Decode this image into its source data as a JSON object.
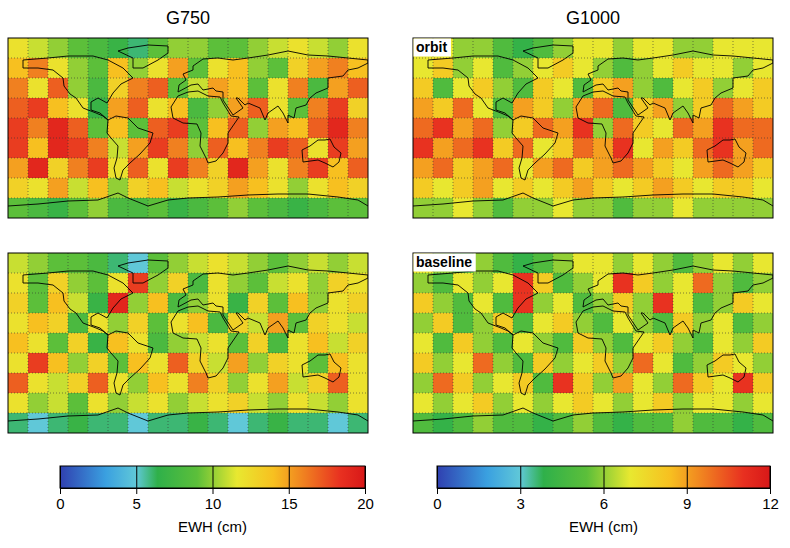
{
  "chart_data": [
    {
      "type": "heatmap",
      "title": "G750",
      "xlim": [
        -180,
        180
      ],
      "ylim": [
        -90,
        90
      ],
      "x": [
        -170,
        -150,
        -130,
        -110,
        -90,
        -70,
        -50,
        -30,
        -10,
        10,
        30,
        50,
        70,
        90,
        110,
        130,
        150,
        170
      ],
      "y": [
        80,
        60,
        40,
        20,
        0,
        -20,
        -40,
        -60,
        -80
      ],
      "grid": true,
      "tick_labels": false,
      "color_range": [
        0,
        20
      ],
      "color_ticks": [
        0,
        5,
        10,
        15,
        20
      ],
      "color_label": "EWH (cm)",
      "panels": [
        {
          "cells": [
            [
              12,
              11,
              10,
              9,
              8,
              7,
              6,
              9,
              10,
              10,
              9,
              9,
              10,
              11,
              12,
              11,
              10,
              12
            ],
            [
              14,
              16,
              12,
              10,
              9,
              14,
              10,
              12,
              15,
              9,
              12,
              14,
              10,
              9,
              13,
              15,
              16,
              14
            ],
            [
              16,
              12,
              17,
              10,
              8,
              13,
              16,
              17,
              9,
              11,
              15,
              14,
              9,
              12,
              16,
              8,
              15,
              17
            ],
            [
              17,
              18,
              14,
              12,
              7,
              15,
              17,
              12,
              14,
              8,
              10,
              15,
              17,
              12,
              9,
              16,
              18,
              13
            ],
            [
              18,
              16,
              19,
              17,
              9,
              14,
              9,
              17,
              18,
              9,
              14,
              17,
              10,
              15,
              14,
              17,
              19,
              16
            ],
            [
              18,
              14,
              19,
              18,
              16,
              11,
              15,
              18,
              16,
              10,
              17,
              14,
              16,
              18,
              17,
              12,
              18,
              15
            ],
            [
              15,
              19,
              13,
              16,
              18,
              12,
              17,
              12,
              18,
              16,
              13,
              19,
              15,
              12,
              16,
              18,
              14,
              17
            ],
            [
              13,
              12,
              15,
              11,
              14,
              10,
              13,
              14,
              11,
              12,
              13,
              15,
              14,
              12,
              10,
              12,
              14,
              13
            ],
            [
              9,
              8,
              7,
              9,
              10,
              8,
              8,
              9,
              7,
              8,
              9,
              10,
              9,
              8,
              7,
              8,
              9,
              9
            ]
          ]
        },
        {
          "cells": [
            [
              11,
              10,
              9,
              9,
              8,
              6,
              5,
              9,
              10,
              11,
              12,
              11,
              10,
              9,
              10,
              11,
              10,
              11
            ],
            [
              12,
              9,
              13,
              10,
              9,
              12,
              18,
              10,
              13,
              8,
              12,
              10,
              9,
              11,
              12,
              10,
              13,
              12
            ],
            [
              13,
              9,
              14,
              11,
              7,
              19,
              10,
              14,
              8,
              10,
              12,
              7,
              13,
              9,
              14,
              10,
              12,
              13
            ],
            [
              12,
              14,
              13,
              8,
              12,
              10,
              13,
              9,
              12,
              14,
              8,
              13,
              11,
              15,
              9,
              13,
              12,
              11
            ],
            [
              14,
              12,
              9,
              13,
              7,
              14,
              12,
              8,
              10,
              11,
              12,
              9,
              13,
              8,
              12,
              14,
              11,
              13
            ],
            [
              12,
              18,
              14,
              10,
              13,
              9,
              14,
              12,
              17,
              13,
              11,
              15,
              10,
              13,
              12,
              9,
              14,
              12
            ],
            [
              17,
              12,
              11,
              13,
              17,
              12,
              10,
              14,
              12,
              16,
              13,
              10,
              12,
              15,
              11,
              13,
              17,
              12
            ],
            [
              12,
              10,
              11,
              9,
              12,
              10,
              11,
              12,
              10,
              11,
              12,
              13,
              11,
              10,
              12,
              11,
              10,
              12
            ],
            [
              6,
              5,
              6,
              7,
              6,
              6,
              5,
              6,
              6,
              7,
              6,
              5,
              6,
              7,
              6,
              6,
              5,
              6
            ]
          ]
        }
      ]
    },
    {
      "type": "heatmap",
      "title": "G1000",
      "xlim": [
        -180,
        180
      ],
      "ylim": [
        -90,
        90
      ],
      "x": [
        -170,
        -150,
        -130,
        -110,
        -90,
        -70,
        -50,
        -30,
        -10,
        10,
        30,
        50,
        70,
        90,
        110,
        130,
        150,
        170
      ],
      "y": [
        80,
        60,
        40,
        20,
        0,
        -20,
        -40,
        -60,
        -80
      ],
      "grid": true,
      "tick_labels": false,
      "color_range": [
        0,
        12
      ],
      "color_ticks": [
        0,
        3,
        6,
        9,
        12
      ],
      "color_label": "EWH (cm)",
      "panels": [
        {
          "annotation": "orbit",
          "cells": [
            [
              7,
              7,
              6,
              6,
              5,
              4,
              5,
              6,
              7,
              7,
              6,
              7,
              7,
              6,
              6,
              7,
              7,
              7
            ],
            [
              7,
              8,
              6,
              7,
              5,
              6,
              7,
              8,
              7,
              6,
              5,
              6,
              7,
              8,
              7,
              7,
              6,
              7
            ],
            [
              8,
              5,
              7,
              8,
              6,
              5,
              8,
              7,
              5,
              8,
              9,
              6,
              5,
              7,
              8,
              6,
              7,
              8
            ],
            [
              9,
              8,
              10,
              7,
              5,
              9,
              8,
              6,
              9,
              10,
              5,
              8,
              9,
              6,
              8,
              10,
              9,
              8
            ],
            [
              10,
              11,
              9,
              10,
              6,
              8,
              10,
              9,
              11,
              6,
              10,
              8,
              7,
              10,
              9,
              11,
              10,
              10
            ],
            [
              11,
              9,
              10,
              11,
              8,
              10,
              7,
              8,
              10,
              9,
              11,
              7,
              9,
              8,
              10,
              11,
              9,
              10
            ],
            [
              9,
              10,
              8,
              9,
              10,
              7,
              9,
              10,
              8,
              9,
              10,
              9,
              8,
              7,
              9,
              10,
              9,
              8
            ],
            [
              8,
              7,
              8,
              9,
              7,
              8,
              7,
              8,
              9,
              8,
              7,
              8,
              9,
              8,
              7,
              8,
              8,
              7
            ],
            [
              6,
              6,
              7,
              6,
              5,
              6,
              6,
              7,
              6,
              6,
              5,
              6,
              6,
              7,
              6,
              6,
              6,
              6
            ]
          ]
        },
        {
          "annotation": "baseline",
          "cells": [
            [
              7,
              6,
              5,
              6,
              5,
              4,
              5,
              6,
              7,
              7,
              6,
              7,
              6,
              5,
              6,
              7,
              6,
              7
            ],
            [
              6,
              5,
              7,
              6,
              7,
              11,
              8,
              5,
              6,
              7,
              11,
              8,
              6,
              7,
              10,
              6,
              5,
              6
            ],
            [
              8,
              6,
              5,
              7,
              5,
              11,
              6,
              7,
              5,
              6,
              8,
              6,
              11,
              7,
              5,
              6,
              8,
              7
            ],
            [
              6,
              8,
              5,
              6,
              8,
              5,
              7,
              8,
              6,
              5,
              7,
              6,
              5,
              8,
              6,
              7,
              5,
              6
            ],
            [
              7,
              5,
              8,
              6,
              5,
              7,
              6,
              5,
              8,
              6,
              5,
              7,
              8,
              6,
              5,
              7,
              6,
              8
            ],
            [
              8,
              6,
              7,
              10,
              6,
              5,
              8,
              6,
              7,
              8,
              6,
              10,
              7,
              5,
              6,
              8,
              7,
              6
            ],
            [
              6,
              10,
              8,
              6,
              7,
              8,
              5,
              11,
              8,
              6,
              9,
              7,
              6,
              10,
              8,
              7,
              11,
              8
            ],
            [
              7,
              6,
              7,
              8,
              6,
              7,
              6,
              7,
              8,
              7,
              6,
              7,
              8,
              6,
              7,
              7,
              6,
              7
            ],
            [
              5,
              4,
              5,
              6,
              5,
              5,
              4,
              5,
              6,
              5,
              4,
              5,
              5,
              6,
              5,
              5,
              4,
              5
            ]
          ]
        }
      ]
    }
  ]
}
